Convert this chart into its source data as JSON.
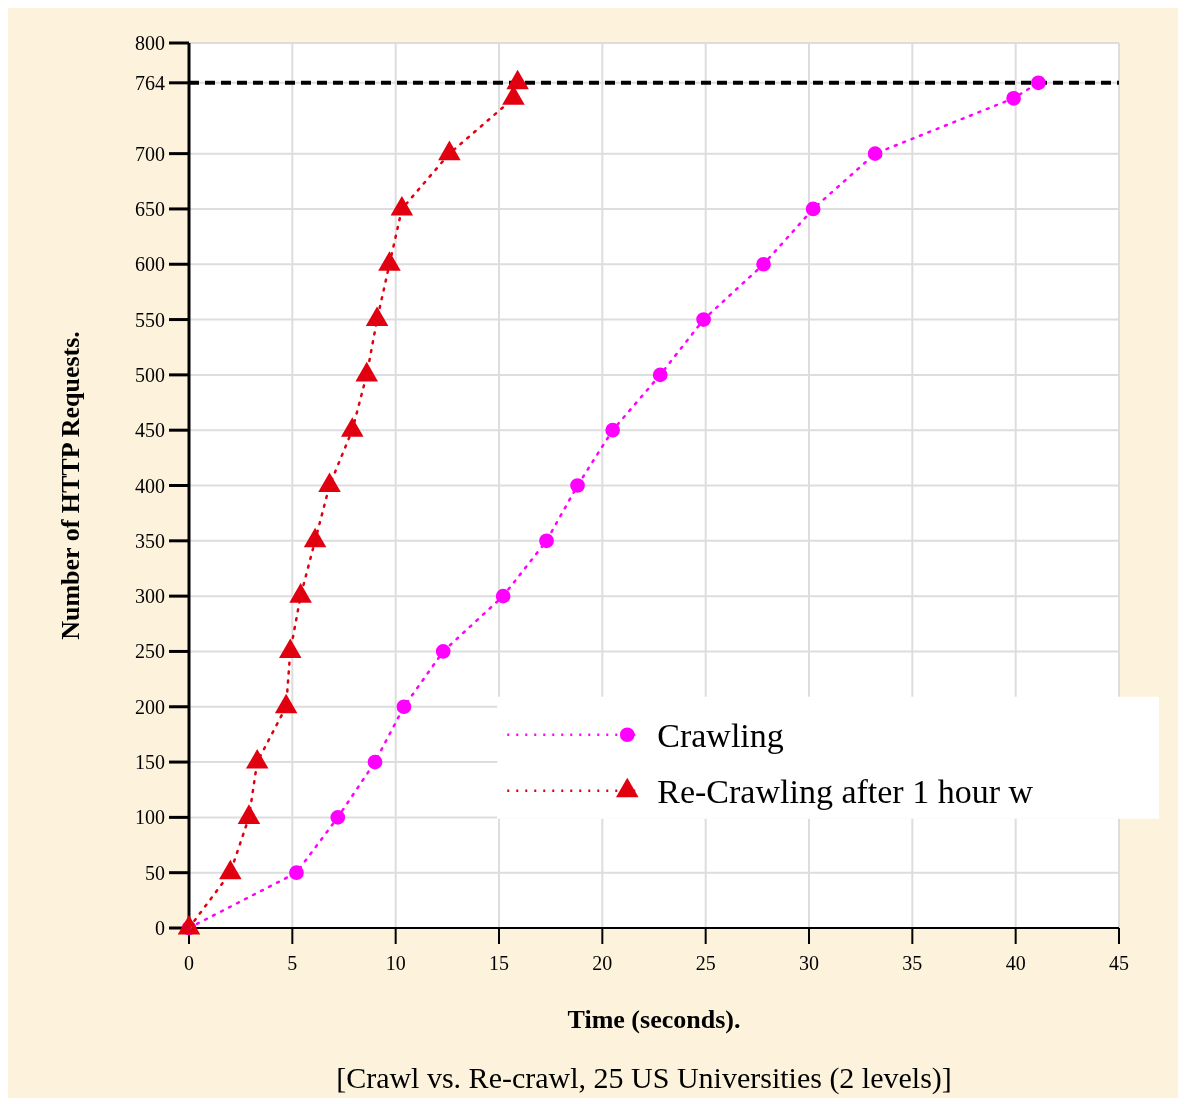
{
  "chart_data": {
    "type": "line",
    "xlabel": "Time (seconds).",
    "ylabel": "Number of HTTP Requests.",
    "annotations": [
      "[Crawl vs. Re-crawl, 25 US Universities (2 levels)]"
    ],
    "xlim": [
      0,
      45
    ],
    "xticks": [
      0,
      5,
      10,
      15,
      20,
      25,
      30,
      35,
      40,
      45
    ],
    "ylim": [
      0,
      800
    ],
    "yticks": [
      0,
      50,
      100,
      150,
      200,
      250,
      300,
      350,
      400,
      450,
      500,
      550,
      600,
      650,
      700,
      764,
      800
    ],
    "grid": true,
    "legend": "bottom right",
    "line_style": "dotted",
    "ref_lines": [
      {
        "axis": "y",
        "value": 764,
        "label": null,
        "color": "#000000",
        "line_style": "dashed"
      }
    ],
    "series": [
      {
        "name": "Crawling",
        "color": "#ff00ff",
        "marker": "circle",
        "x": [
          0,
          5.2,
          7.2,
          9.0,
          10.4,
          12.3,
          15.2,
          17.3,
          18.8,
          20.5,
          22.8,
          24.9,
          27.8,
          30.2,
          33.2,
          39.9,
          41.1
        ],
        "values": [
          0,
          50,
          100,
          150,
          200,
          250,
          300,
          350,
          400,
          450,
          500,
          550,
          600,
          650,
          700,
          750,
          764
        ]
      },
      {
        "name": "Re-Crawling after 1 hour w",
        "color": "#e00010",
        "marker": "triangle",
        "x": [
          0,
          2.0,
          2.9,
          3.3,
          4.7,
          4.9,
          5.4,
          6.1,
          6.8,
          7.9,
          8.6,
          9.1,
          9.7,
          10.3,
          12.6,
          15.7,
          15.9
        ],
        "values": [
          0,
          50,
          100,
          150,
          200,
          250,
          300,
          350,
          400,
          450,
          500,
          550,
          600,
          650,
          700,
          750,
          764
        ]
      }
    ]
  }
}
